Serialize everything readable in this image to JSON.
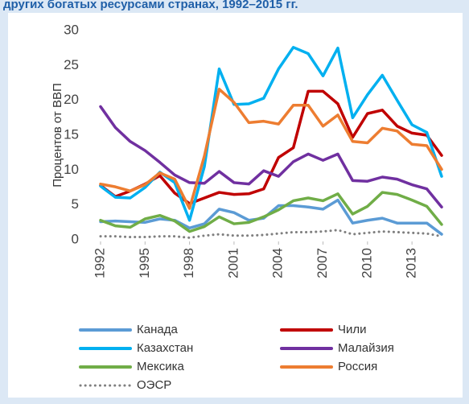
{
  "chart_data": {
    "type": "line",
    "title": "других богатых ресурсами странах, 1992–2015 гг.",
    "y_label": "Процентов от ВВП",
    "x": [
      1992,
      1993,
      1994,
      1995,
      1996,
      1997,
      1998,
      1999,
      2000,
      2001,
      2002,
      2003,
      2004,
      2005,
      2006,
      2007,
      2008,
      2009,
      2010,
      2011,
      2012,
      2013,
      2014,
      2015
    ],
    "xlim": [
      1992,
      2015
    ],
    "xticks": [
      1992,
      1995,
      1998,
      2001,
      2004,
      2007,
      2010,
      2013
    ],
    "ylim": [
      0,
      30
    ],
    "yticks": [
      0,
      5,
      10,
      15,
      20,
      25,
      30
    ],
    "series": [
      {
        "name": "Канада",
        "color": "#5b9bd5",
        "values": [
          2.6,
          2.7,
          2.6,
          2.5,
          3.0,
          2.8,
          1.7,
          2.3,
          4.4,
          3.9,
          2.8,
          3.1,
          4.9,
          4.9,
          4.7,
          4.4,
          5.7,
          2.4,
          2.8,
          3.1,
          2.4,
          2.4,
          2.4,
          0.8
        ]
      },
      {
        "name": "Чили",
        "color": "#c00000",
        "values": [
          7.8,
          6.2,
          7.0,
          8.0,
          9.2,
          6.7,
          5.2,
          6.0,
          6.8,
          6.5,
          6.6,
          7.3,
          11.8,
          13.2,
          21.3,
          21.3,
          19.5,
          14.7,
          18.1,
          18.6,
          16.3,
          15.3,
          15.0,
          12.1
        ]
      },
      {
        "name": "Казахстан",
        "color": "#00b0f0",
        "values": [
          7.7,
          6.1,
          6.0,
          7.5,
          9.7,
          8.2,
          2.8,
          10.5,
          24.5,
          19.4,
          19.5,
          20.3,
          24.5,
          27.6,
          26.7,
          23.5,
          27.5,
          17.5,
          20.8,
          23.6,
          20.0,
          16.5,
          15.4,
          9.1
        ]
      },
      {
        "name": "Малайзия",
        "color": "#7030a0",
        "values": [
          19.1,
          16.1,
          14.1,
          12.8,
          11.1,
          9.3,
          8.2,
          8.1,
          9.8,
          8.2,
          8.0,
          9.9,
          9.1,
          11.2,
          12.3,
          11.4,
          12.3,
          8.5,
          8.4,
          9.0,
          8.7,
          7.9,
          7.3,
          4.7
        ]
      },
      {
        "name": "Мексика",
        "color": "#70ad47",
        "values": [
          2.8,
          2.0,
          1.8,
          3.0,
          3.5,
          2.7,
          1.2,
          1.9,
          3.3,
          2.3,
          2.5,
          3.3,
          4.3,
          5.6,
          6.0,
          5.6,
          6.6,
          3.7,
          4.8,
          6.8,
          6.5,
          5.7,
          4.8,
          2.2
        ]
      },
      {
        "name": "Россия",
        "color": "#ed7d31",
        "values": [
          8.0,
          7.6,
          7.0,
          7.9,
          9.6,
          8.7,
          4.5,
          12.0,
          21.6,
          19.7,
          16.8,
          17.0,
          16.6,
          19.3,
          19.3,
          16.3,
          17.9,
          14.1,
          13.9,
          16.0,
          15.6,
          13.7,
          13.5,
          10.1
        ]
      },
      {
        "name": "ОЭСР",
        "color": "#7f7f7f",
        "dash": "dotted",
        "values": [
          0.5,
          0.5,
          0.4,
          0.4,
          0.5,
          0.5,
          0.3,
          0.6,
          0.8,
          0.6,
          0.6,
          0.7,
          0.9,
          1.1,
          1.1,
          1.2,
          1.4,
          0.8,
          1.0,
          1.2,
          1.1,
          1.0,
          0.9,
          0.5
        ]
      }
    ]
  }
}
